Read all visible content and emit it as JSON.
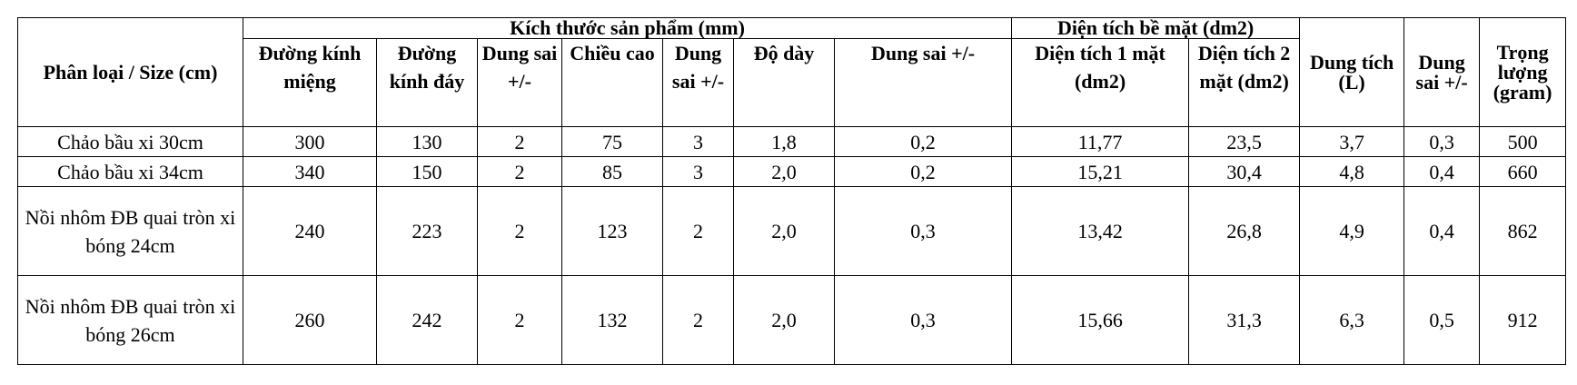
{
  "table": {
    "header": {
      "category": "Phân loại / Size (cm)",
      "groups": [
        "Kích thước sản phẩm (mm)",
        "Diện tích bề mặt (dm2)"
      ],
      "columns": [
        "Đường kính miệng",
        "Đường kính đáy",
        "Dung sai +/-",
        "Chiều cao",
        "Dung sai +/-",
        "Độ dày",
        "Dung sai +/-",
        "Diện tích 1 mặt (dm2)",
        "Diện tích 2 mặt (dm2)"
      ],
      "capacity": "Dung tích (L)",
      "capacity_tolerance": "Dung sai +/-",
      "weight": "Trọng lượng (gram)"
    },
    "rows": [
      [
        "Chảo bầu xi 30cm",
        "300",
        "130",
        "2",
        "75",
        "3",
        "1,8",
        "0,2",
        "11,77",
        "23,5",
        "3,7",
        "0,3",
        "500"
      ],
      [
        "Chảo bầu xi 34cm",
        "340",
        "150",
        "2",
        "85",
        "3",
        "2,0",
        "0,2",
        "15,21",
        "30,4",
        "4,8",
        "0,4",
        "660"
      ],
      [
        "Nồi nhôm ĐB quai tròn xi bóng 24cm",
        "240",
        "223",
        "2",
        "123",
        "2",
        "2,0",
        "0,3",
        "13,42",
        "26,8",
        "4,9",
        "0,4",
        "862"
      ],
      [
        "Nồi nhôm ĐB quai tròn xi bóng 26cm",
        "260",
        "242",
        "2",
        "132",
        "2",
        "2,0",
        "0,3",
        "15,66",
        "31,3",
        "6,3",
        "0,5",
        "912"
      ]
    ]
  }
}
